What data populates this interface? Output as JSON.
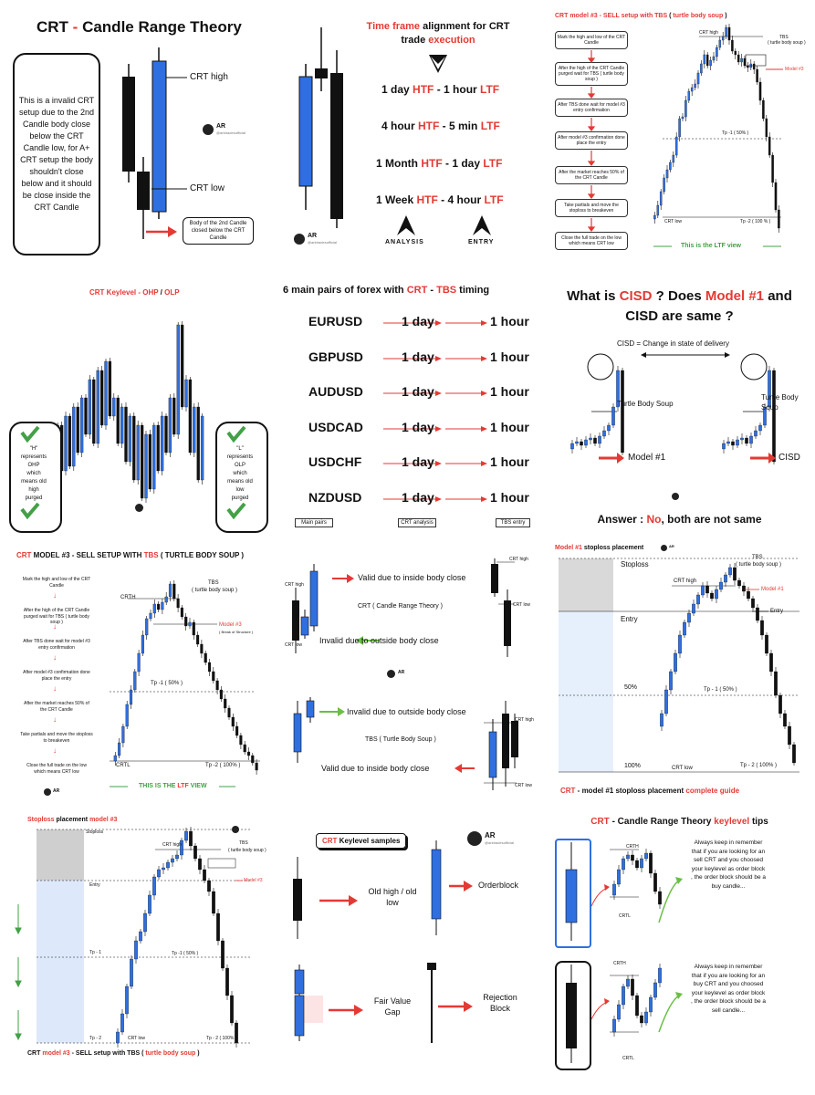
{
  "colors": {
    "blue": "#2f6fe0",
    "red": "#e53935",
    "green": "#43a047",
    "black": "#111111"
  },
  "p1": {
    "title_a": "CRT",
    "title_dash": " - ",
    "title_b": "Candle Range Theory",
    "box_text": "This is a invalid CRT setup due to the 2nd Candle body close below the CRT Candle low, for A+ CRT setup the body shouldn't close below and it should be close inside the CRT Candle",
    "crt_high": "CRT high",
    "crt_low": "CRT low",
    "note": "Body of the 2nd Candle closed below the CRT Candle",
    "brand": "AR",
    "handle": "@arktradesofficial"
  },
  "p2": {
    "title_a": "Time frame",
    "title_b": " alignment for CRT",
    "title_c": "trade ",
    "title_d": "execution",
    "rows": [
      {
        "a": "1 day ",
        "b": "HTF",
        "c": " - 1 hour ",
        "d": "LTF"
      },
      {
        "a": "4 hour ",
        "b": "HTF",
        "c": " - 5 min ",
        "d": "LTF"
      },
      {
        "a": "1 Month ",
        "b": "HTF",
        "c": " - 1 day ",
        "d": "LTF"
      },
      {
        "a": "1 Week ",
        "b": "HTF",
        "c": " - 4 hour ",
        "d": "LTF"
      }
    ],
    "analysis": "ANALYSIS",
    "entry": "ENTRY",
    "brand": "AR",
    "handle": "@arktradesofficial"
  },
  "p3": {
    "title_a": "CRT model #3 - SELL setup with TBS",
    "title_b": " ( ",
    "title_c": "turtle body soup",
    "title_d": " )",
    "steps": [
      "Mark the high and low of the CRT Candle",
      "After the high of the CRT Candle purged wait for TBS ( turtle body soup )",
      "After TBS done wait for model #3 entry confirmation",
      "After model #3 confirmation done place the entry",
      "After the market reaches 50% of the CRT Candle",
      "Take partials and move the stoploss to breakeven",
      "Close the full trade on the low which means CRT low"
    ],
    "crt_high": "CRT high",
    "tbs": "TBS",
    "tbs_sub": "( turtle body soup )",
    "model": "Model #3",
    "tp1": "Tp -1 ( 50% )",
    "crt_low": "CRT low",
    "tp2": "Tp -2 ( 100 % )",
    "footer": "This is the LTF view"
  },
  "p4": {
    "title_a": "CRT Keylevel - ",
    "title_b": "OHP",
    "title_c": " / ",
    "title_d": "OLP",
    "left_text": [
      "\"H\"",
      "represents",
      "OHP",
      "which",
      "means old",
      "high",
      "purged"
    ],
    "right_text": [
      "\"L\"",
      "represents",
      "OLP",
      "which",
      "means old",
      "low",
      "purged"
    ],
    "h": "H",
    "l": "L"
  },
  "p5": {
    "title_a": "6 main pairs of forex with ",
    "title_b": "CRT",
    "title_c": " - ",
    "title_d": "TBS",
    "title_e": " timing",
    "pairs": [
      "EURUSD",
      "GBPUSD",
      "AUDUSD",
      "USDCAD",
      "USDCHF",
      "NZDUSD"
    ],
    "htf": "1 day",
    "ltf": "1 hour",
    "labels": [
      "Main pairs",
      "CRT analysis",
      "TBS entry"
    ]
  },
  "p6": {
    "title_a": "What is ",
    "title_b": "CISD",
    "title_c": " ? Does ",
    "title_d": "Model #1",
    "title_e": " and",
    "title_f": "CISD are same ?",
    "cisd_def": "CISD = Change in state of delivery",
    "tbs": "Turtle Body Soup",
    "model": "Model #1",
    "cisd": "CISD",
    "answer_a": "Answer : ",
    "answer_b": "No",
    "answer_c": ", both are not same"
  },
  "p7": {
    "title_a": "CRT",
    "title_b": " MODEL #3 - SELL SETUP WITH ",
    "title_c": "TBS",
    "title_d": " ( TURTLE BODY SOUP )",
    "steps": [
      "Mark the high and low of the CRT Candle",
      "After the high of the CRT Candle purged wait for TBS ( turtle body soup )",
      "After TBS done wait for model #3 entry confirmation",
      "After model #3 confirmation done place the entry",
      "After the market reaches 50% of the CRT Candle",
      "Take partials and move the stoploss to breakeven",
      "Close the full trade on the low which means CRT low"
    ],
    "crth": "CRTH",
    "tbs": "TBS",
    "tbs_sub": "( turtle body soup )",
    "model": "Model #3",
    "model_sub": "( Break of Structure )",
    "tp1": "Tp -1 ( 50% )",
    "crtl": "CRTL",
    "tp2": "Tp -2 ( 100% )",
    "footer_a": "THIS IS THE ",
    "footer_b": "LTF",
    "footer_c": " VIEW",
    "brand": "AR"
  },
  "p8": {
    "valid1": "Valid due to inside body close",
    "crt_theory": "CRT ( Candle Range Theory )",
    "invalid1": "Invalid due to outside body close",
    "invalid2": "Invalid due to outside body close",
    "tbs": "TBS ( Turtle Body Soup )",
    "valid2": "Valid due to inside body close",
    "crt_high": "CRT high",
    "crt_low": "CRT low",
    "brand": "AR"
  },
  "p9": {
    "title_a": "Model #1",
    "title_b": " stoploss placement",
    "stoploss": "Stoploss",
    "entry": "Entry",
    "fifty": "50%",
    "hundred": "100%",
    "crt_high": "CRT high",
    "tbs": "TBS",
    "tbs_sub": "( turtle body soup )",
    "model": "Model #1",
    "entry2": "Entry",
    "tp1": "Tp - 1 ( 50% )",
    "crt_low": "CRT low",
    "tp2": "Tp - 2 ( 100% )",
    "footer_a": "CRT",
    "footer_b": " - model #1 stoploss placement ",
    "footer_c": "complete guide",
    "brand": "AR"
  },
  "p10": {
    "title_a": "Stoploss",
    "title_b": " placement ",
    "title_c": "model #3",
    "stoploss": "Stoploss",
    "entry": "Entry",
    "tp1": "Tp - 1",
    "tp2": "Tp - 2",
    "crt_high": "CRT high",
    "tbs": "TBS",
    "tbs_sub": "( turtle body soup )",
    "model": "Model #3",
    "tp1r": "Tp -1 ( 50% )",
    "crt_low": "CRT low",
    "tp2r": "Tp - 2 ( 100% )",
    "footer_a": "CRT ",
    "footer_b": "model #3",
    "footer_c": " - SELL setup with TBS ( ",
    "footer_d": "turtle body soup",
    "footer_e": " )"
  },
  "p11": {
    "title_a": "CRT",
    "title_b": " Keylevel samples",
    "old": "Old high / old low",
    "ob": "Orderblock",
    "fvg": "Fair Value Gap",
    "rb": "Rejection Block",
    "brand": "AR",
    "handle": "@arktradesofficial"
  },
  "p12": {
    "title_a": "CRT",
    "title_b": " - Candle Range Theory ",
    "title_c": "keylevel",
    "title_d": " tips",
    "tip1": "Always keep in remember that if you are looking for an sell CRT and you choosed your keylevel as order block , the order block should be a buy candle...",
    "tip2": "Always keep in remember that if you are looking for an buy CRT and you choosed your keylevel as order block , the order block should be a sell candle...",
    "crth": "CRTH",
    "crtl": "CRTL"
  }
}
